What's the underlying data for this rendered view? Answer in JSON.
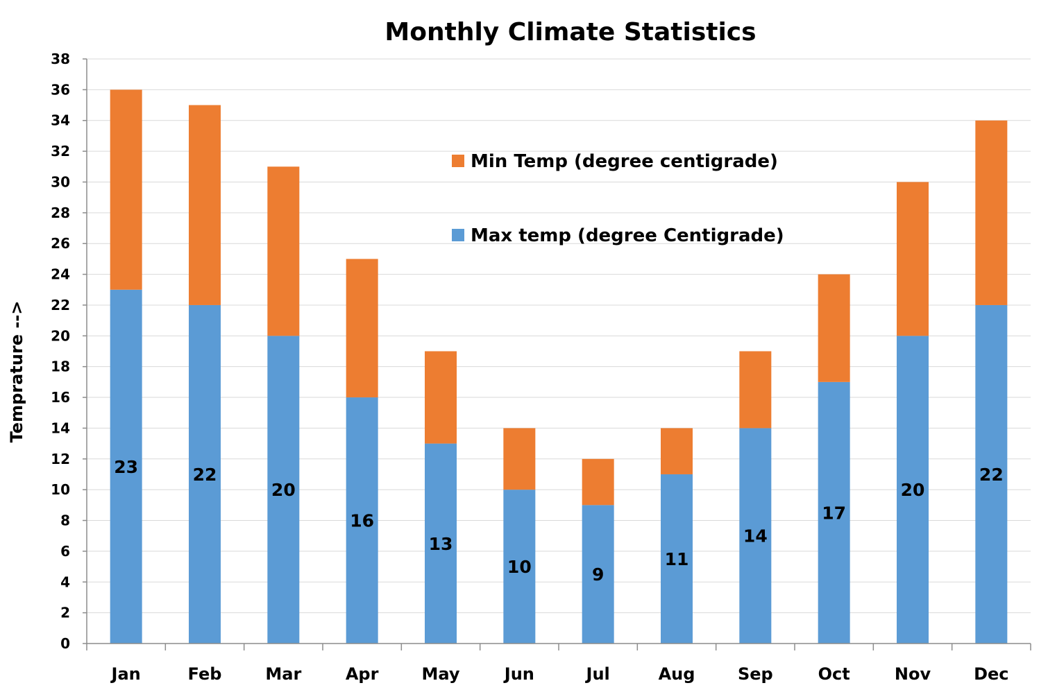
{
  "chart_data": {
    "type": "bar",
    "stacked": true,
    "title": "Monthly  Climate  Statistics",
    "xlabel": "",
    "ylabel": "Temprature -->",
    "categories": [
      "Jan",
      "Feb",
      "Mar",
      "Apr",
      "May",
      "Jun",
      "Jul",
      "Aug",
      "Sep",
      "Oct",
      "Nov",
      "Dec"
    ],
    "series": [
      {
        "name": "Max temp (degree Centigrade)",
        "color": "#5b9bd5",
        "values": [
          23,
          22,
          20,
          16,
          13,
          10,
          9,
          11,
          14,
          17,
          20,
          22
        ],
        "show_labels": true
      },
      {
        "name": "Min Temp (degree centigrade)",
        "color": "#ed7d31",
        "values": [
          13,
          13,
          11,
          9,
          6,
          4,
          3,
          3,
          5,
          7,
          10,
          12
        ],
        "show_labels": false
      }
    ],
    "ylim": [
      0,
      38
    ],
    "ytick_step": 2,
    "grid": true,
    "legend_position": "top-center",
    "legend_order": [
      "Min Temp (degree centigrade)",
      "Max temp (degree Centigrade)"
    ]
  }
}
